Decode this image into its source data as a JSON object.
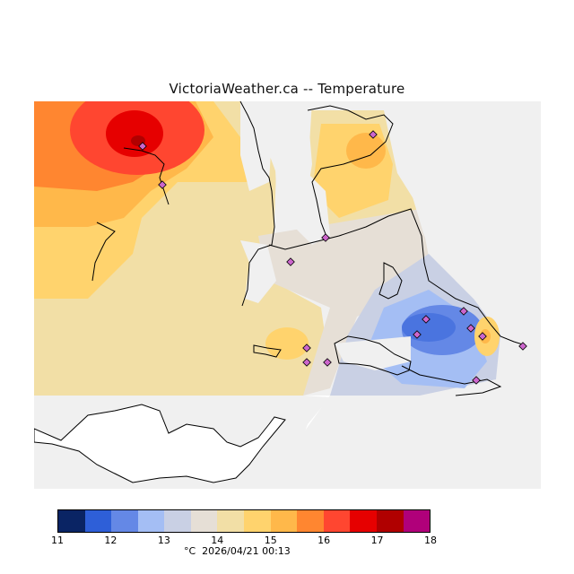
{
  "title": "VictoriaWeather.ca -- Temperature",
  "legend": {
    "colors": [
      "#0a2464",
      "#2e5fd8",
      "#6488e6",
      "#a4bef4",
      "#c9d0e4",
      "#e6dfd6",
      "#f2dfa6",
      "#ffd36d",
      "#ffb84a",
      "#ff8630",
      "#ff4630",
      "#e60000",
      "#b00000",
      "#b0007a"
    ],
    "ticks": [
      "11",
      "12",
      "13",
      "14",
      "15",
      "16",
      "17",
      "18"
    ]
  },
  "caption": "°C  2026/04/21 00:13",
  "colors": {
    "background": "#f0f0f0",
    "coast": "#000000",
    "station": "#cc66cc"
  }
}
